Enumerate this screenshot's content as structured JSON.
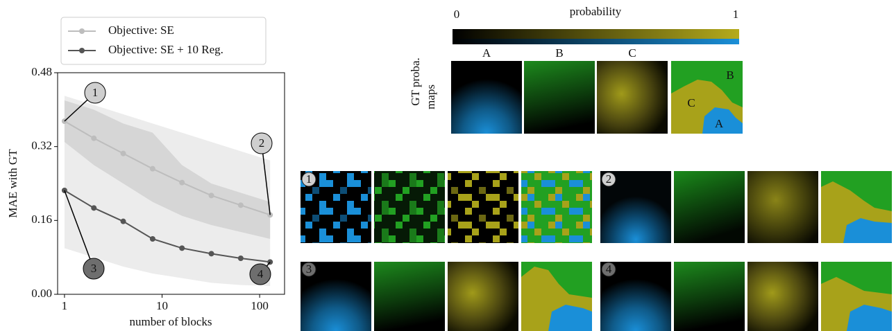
{
  "chart_data": {
    "type": "line",
    "y_label": "MAE with GT",
    "x_label": "number of blocks",
    "x": [
      1,
      2,
      4,
      8,
      16,
      32,
      64,
      128
    ],
    "xlim": [
      0.85,
      180
    ],
    "xscale": "log",
    "xticks": [
      1,
      10,
      100
    ],
    "ylim": [
      0,
      0.48
    ],
    "yticks": [
      {
        "value": 0,
        "label": "0.00"
      },
      {
        "value": 0.16,
        "label": "0.16"
      },
      {
        "value": 0.32,
        "label": "0.32"
      },
      {
        "value": 0.48,
        "label": "0.48"
      }
    ],
    "legend_loc": "above",
    "series": [
      {
        "name": "Objective: SE",
        "color": "#bdbdbd",
        "band_color": "#c4c4c4",
        "values": [
          0.375,
          0.338,
          0.305,
          0.272,
          0.242,
          0.214,
          0.193,
          0.172
        ],
        "lower": [
          0.33,
          0.28,
          0.24,
          0.2,
          0.17,
          0.15,
          0.135,
          0.12
        ],
        "upper": [
          0.42,
          0.4,
          0.37,
          0.35,
          0.28,
          0.24,
          0.22,
          0.2
        ]
      },
      {
        "name": "Objective: SE + 10 Reg.",
        "color": "#555555",
        "band_color": "#ececec",
        "values": [
          0.225,
          0.187,
          0.158,
          0.12,
          0.1,
          0.088,
          0.078,
          0.07
        ],
        "lower": [
          0.1,
          0.08,
          0.06,
          0.045,
          0.035,
          0.025,
          0.02,
          0.018
        ],
        "upper": [
          0.43,
          0.41,
          0.39,
          0.37,
          0.35,
          0.33,
          0.31,
          0.29
        ]
      }
    ],
    "annotations": [
      "1",
      "2",
      "3",
      "4"
    ]
  },
  "colorbar": {
    "label": "probability",
    "ticks": [
      0,
      1
    ]
  },
  "gt_maps": {
    "label": [
      "GT proba.",
      "maps"
    ],
    "columns": [
      "A",
      "B",
      "C"
    ],
    "segmentation_labels": [
      "B",
      "C",
      "A"
    ]
  },
  "panels": [
    "1",
    "2",
    "3",
    "4"
  ]
}
